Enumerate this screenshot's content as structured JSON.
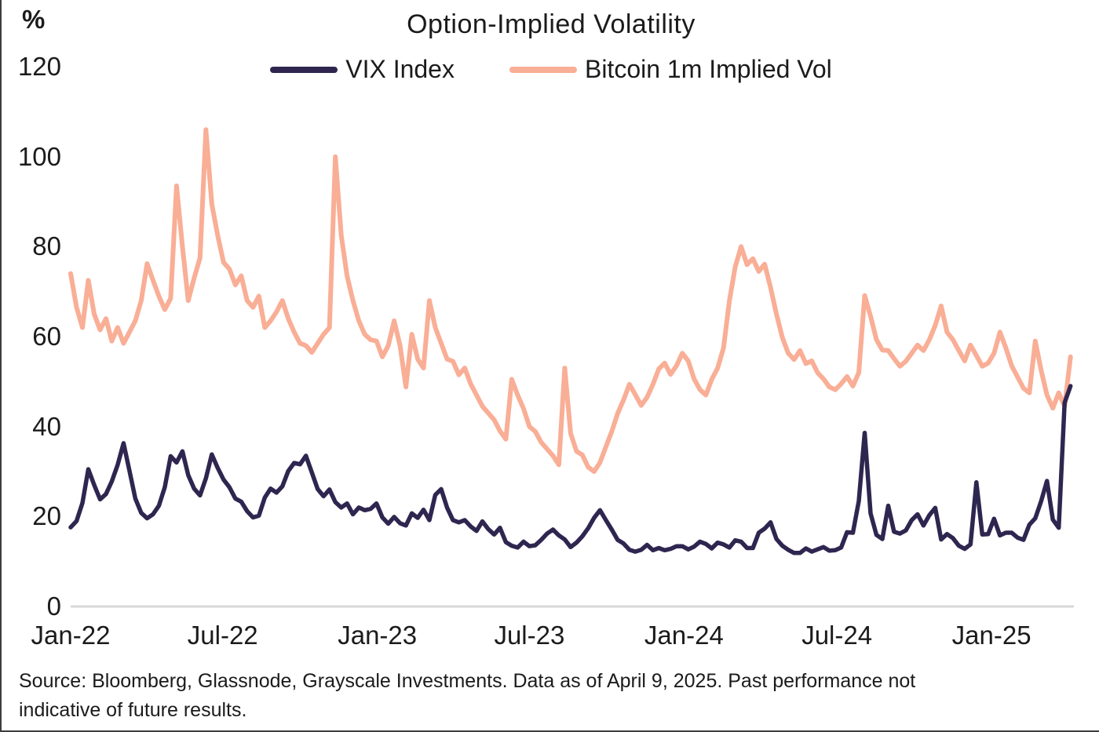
{
  "header": {
    "unit_label": "%",
    "title": "Option-Implied Volatility"
  },
  "legend": {
    "items": [
      {
        "label": "VIX Index",
        "color": "#2f2650"
      },
      {
        "label": "Bitcoin 1m Implied Vol",
        "color": "#f9ae96"
      }
    ]
  },
  "footer": {
    "source": "Source: Bloomberg, Glassnode, Grayscale Investments. Data as of April 9, 2025. Past performance not indicative of future results."
  },
  "chart_data": {
    "type": "line",
    "title": "Option-Implied Volatility",
    "ylabel": "%",
    "xlabel": "",
    "grid": false,
    "legend_position": "top-center",
    "background_color": "#ffffff",
    "baseline_color": "#d8d8d8",
    "ylim": [
      0,
      120
    ],
    "yticks": [
      120,
      100,
      80,
      60,
      40,
      20,
      0
    ],
    "xtick_labels": [
      "Jan-22",
      "Jul-22",
      "Jan-23",
      "Jul-23",
      "Jan-24",
      "Jul-24",
      "Jan-25"
    ],
    "xtick_days": [
      0,
      181,
      365,
      546,
      730,
      912,
      1096
    ],
    "x_span_days": 1194,
    "x_start_label": "Jan-22",
    "x_end_label": "Apr 9, 2025",
    "sample_interval_days": 7,
    "series": [
      {
        "name": "VIX Index",
        "color": "#2f2650",
        "stroke_width": 5.5,
        "values": [
          17.6,
          19.0,
          23.0,
          30.5,
          27.0,
          23.8,
          25.0,
          27.8,
          31.5,
          36.3,
          30.2,
          24.0,
          20.8,
          19.6,
          20.5,
          22.4,
          26.5,
          33.4,
          32.0,
          34.5,
          29.2,
          26.2,
          24.7,
          28.5,
          33.8,
          30.8,
          28.2,
          26.5,
          24.0,
          23.3,
          21.2,
          19.8,
          20.2,
          24.2,
          26.2,
          25.3,
          26.7,
          30.1,
          31.9,
          31.6,
          33.5,
          29.8,
          26.1,
          24.5,
          26.0,
          23.2,
          22.0,
          22.9,
          20.5,
          22.0,
          21.4,
          21.7,
          22.9,
          19.8,
          18.4,
          19.9,
          18.5,
          18.0,
          20.7,
          19.7,
          21.5,
          19.2,
          24.8,
          26.1,
          22.0,
          19.2,
          18.7,
          19.2,
          17.8,
          16.8,
          18.9,
          17.2,
          16.0,
          17.5,
          14.3,
          13.5,
          13.1,
          14.4,
          13.4,
          13.6,
          14.8,
          16.2,
          17.1,
          15.8,
          14.9,
          13.2,
          14.2,
          15.6,
          17.4,
          19.7,
          21.4,
          19.2,
          17.1,
          14.8,
          14.0,
          12.6,
          12.2,
          12.6,
          13.7,
          12.5,
          13.0,
          12.5,
          12.8,
          13.4,
          13.4,
          12.7,
          13.3,
          14.4,
          13.9,
          12.9,
          14.2,
          13.8,
          13.1,
          14.7,
          14.4,
          13.0,
          13.0,
          16.4,
          17.3,
          18.7,
          15.0,
          13.5,
          12.6,
          11.9,
          11.9,
          12.9,
          12.2,
          12.7,
          13.2,
          12.4,
          12.5,
          13.1,
          16.5,
          16.4,
          23.4,
          38.6,
          20.7,
          15.9,
          15.0,
          22.4,
          16.6,
          16.2,
          16.9,
          19.2,
          20.5,
          18.0,
          20.3,
          21.9,
          14.9,
          16.1,
          15.2,
          13.5,
          12.8,
          13.8,
          27.6,
          16.0,
          16.1,
          19.5,
          15.8,
          16.4,
          16.4,
          15.3,
          14.8,
          18.2,
          19.6,
          23.4,
          27.9,
          19.3,
          17.5,
          45.3,
          49.0
        ]
      },
      {
        "name": "Bitcoin 1m Implied Vol",
        "color": "#f9ae96",
        "stroke_width": 6,
        "values": [
          74.0,
          66.5,
          62.0,
          72.5,
          65.0,
          61.5,
          64.0,
          59.0,
          62.0,
          58.5,
          61.0,
          63.5,
          68.0,
          76.2,
          72.5,
          69.0,
          66.0,
          68.5,
          93.5,
          80.0,
          68.0,
          73.0,
          77.5,
          106.0,
          89.5,
          82.5,
          76.5,
          75.0,
          71.5,
          73.5,
          68.0,
          66.5,
          69.0,
          62.0,
          63.5,
          65.5,
          68.0,
          64.0,
          61.0,
          58.5,
          58.0,
          56.5,
          58.5,
          60.5,
          62.0,
          100.0,
          82.5,
          73.5,
          68.0,
          63.5,
          60.5,
          59.3,
          59.0,
          55.5,
          58.0,
          63.5,
          58.0,
          48.8,
          60.5,
          55.0,
          53.0,
          68.0,
          62.0,
          58.5,
          55.0,
          54.5,
          51.5,
          53.0,
          49.5,
          47.0,
          44.5,
          43.0,
          41.5,
          39.0,
          37.2,
          50.5,
          47.0,
          44.0,
          40.0,
          38.9,
          36.5,
          35.0,
          33.5,
          31.5,
          53.0,
          38.5,
          34.5,
          33.7,
          31.0,
          30.0,
          32.0,
          35.5,
          38.9,
          42.9,
          45.9,
          49.4,
          47.1,
          44.7,
          46.5,
          49.4,
          52.8,
          54.1,
          51.6,
          53.5,
          56.3,
          54.6,
          50.6,
          48.2,
          47.0,
          50.5,
          53.0,
          57.5,
          68.0,
          75.5,
          80.0,
          76.0,
          77.3,
          74.5,
          76.1,
          70.9,
          65.0,
          59.8,
          56.3,
          54.9,
          56.9,
          54.0,
          54.6,
          52.0,
          50.6,
          48.8,
          48.2,
          49.5,
          51.1,
          49.0,
          52.0,
          69.1,
          64.5,
          59.3,
          57.0,
          56.9,
          55.1,
          53.4,
          54.5,
          56.3,
          58.1,
          56.9,
          59.3,
          62.5,
          66.8,
          61.0,
          59.3,
          56.9,
          54.6,
          58.1,
          55.8,
          53.4,
          54.1,
          56.3,
          61.0,
          57.5,
          53.5,
          51.0,
          48.5,
          47.5,
          59.0,
          52.5,
          47.0,
          44.1,
          47.5,
          44.5,
          55.5
        ]
      }
    ]
  }
}
